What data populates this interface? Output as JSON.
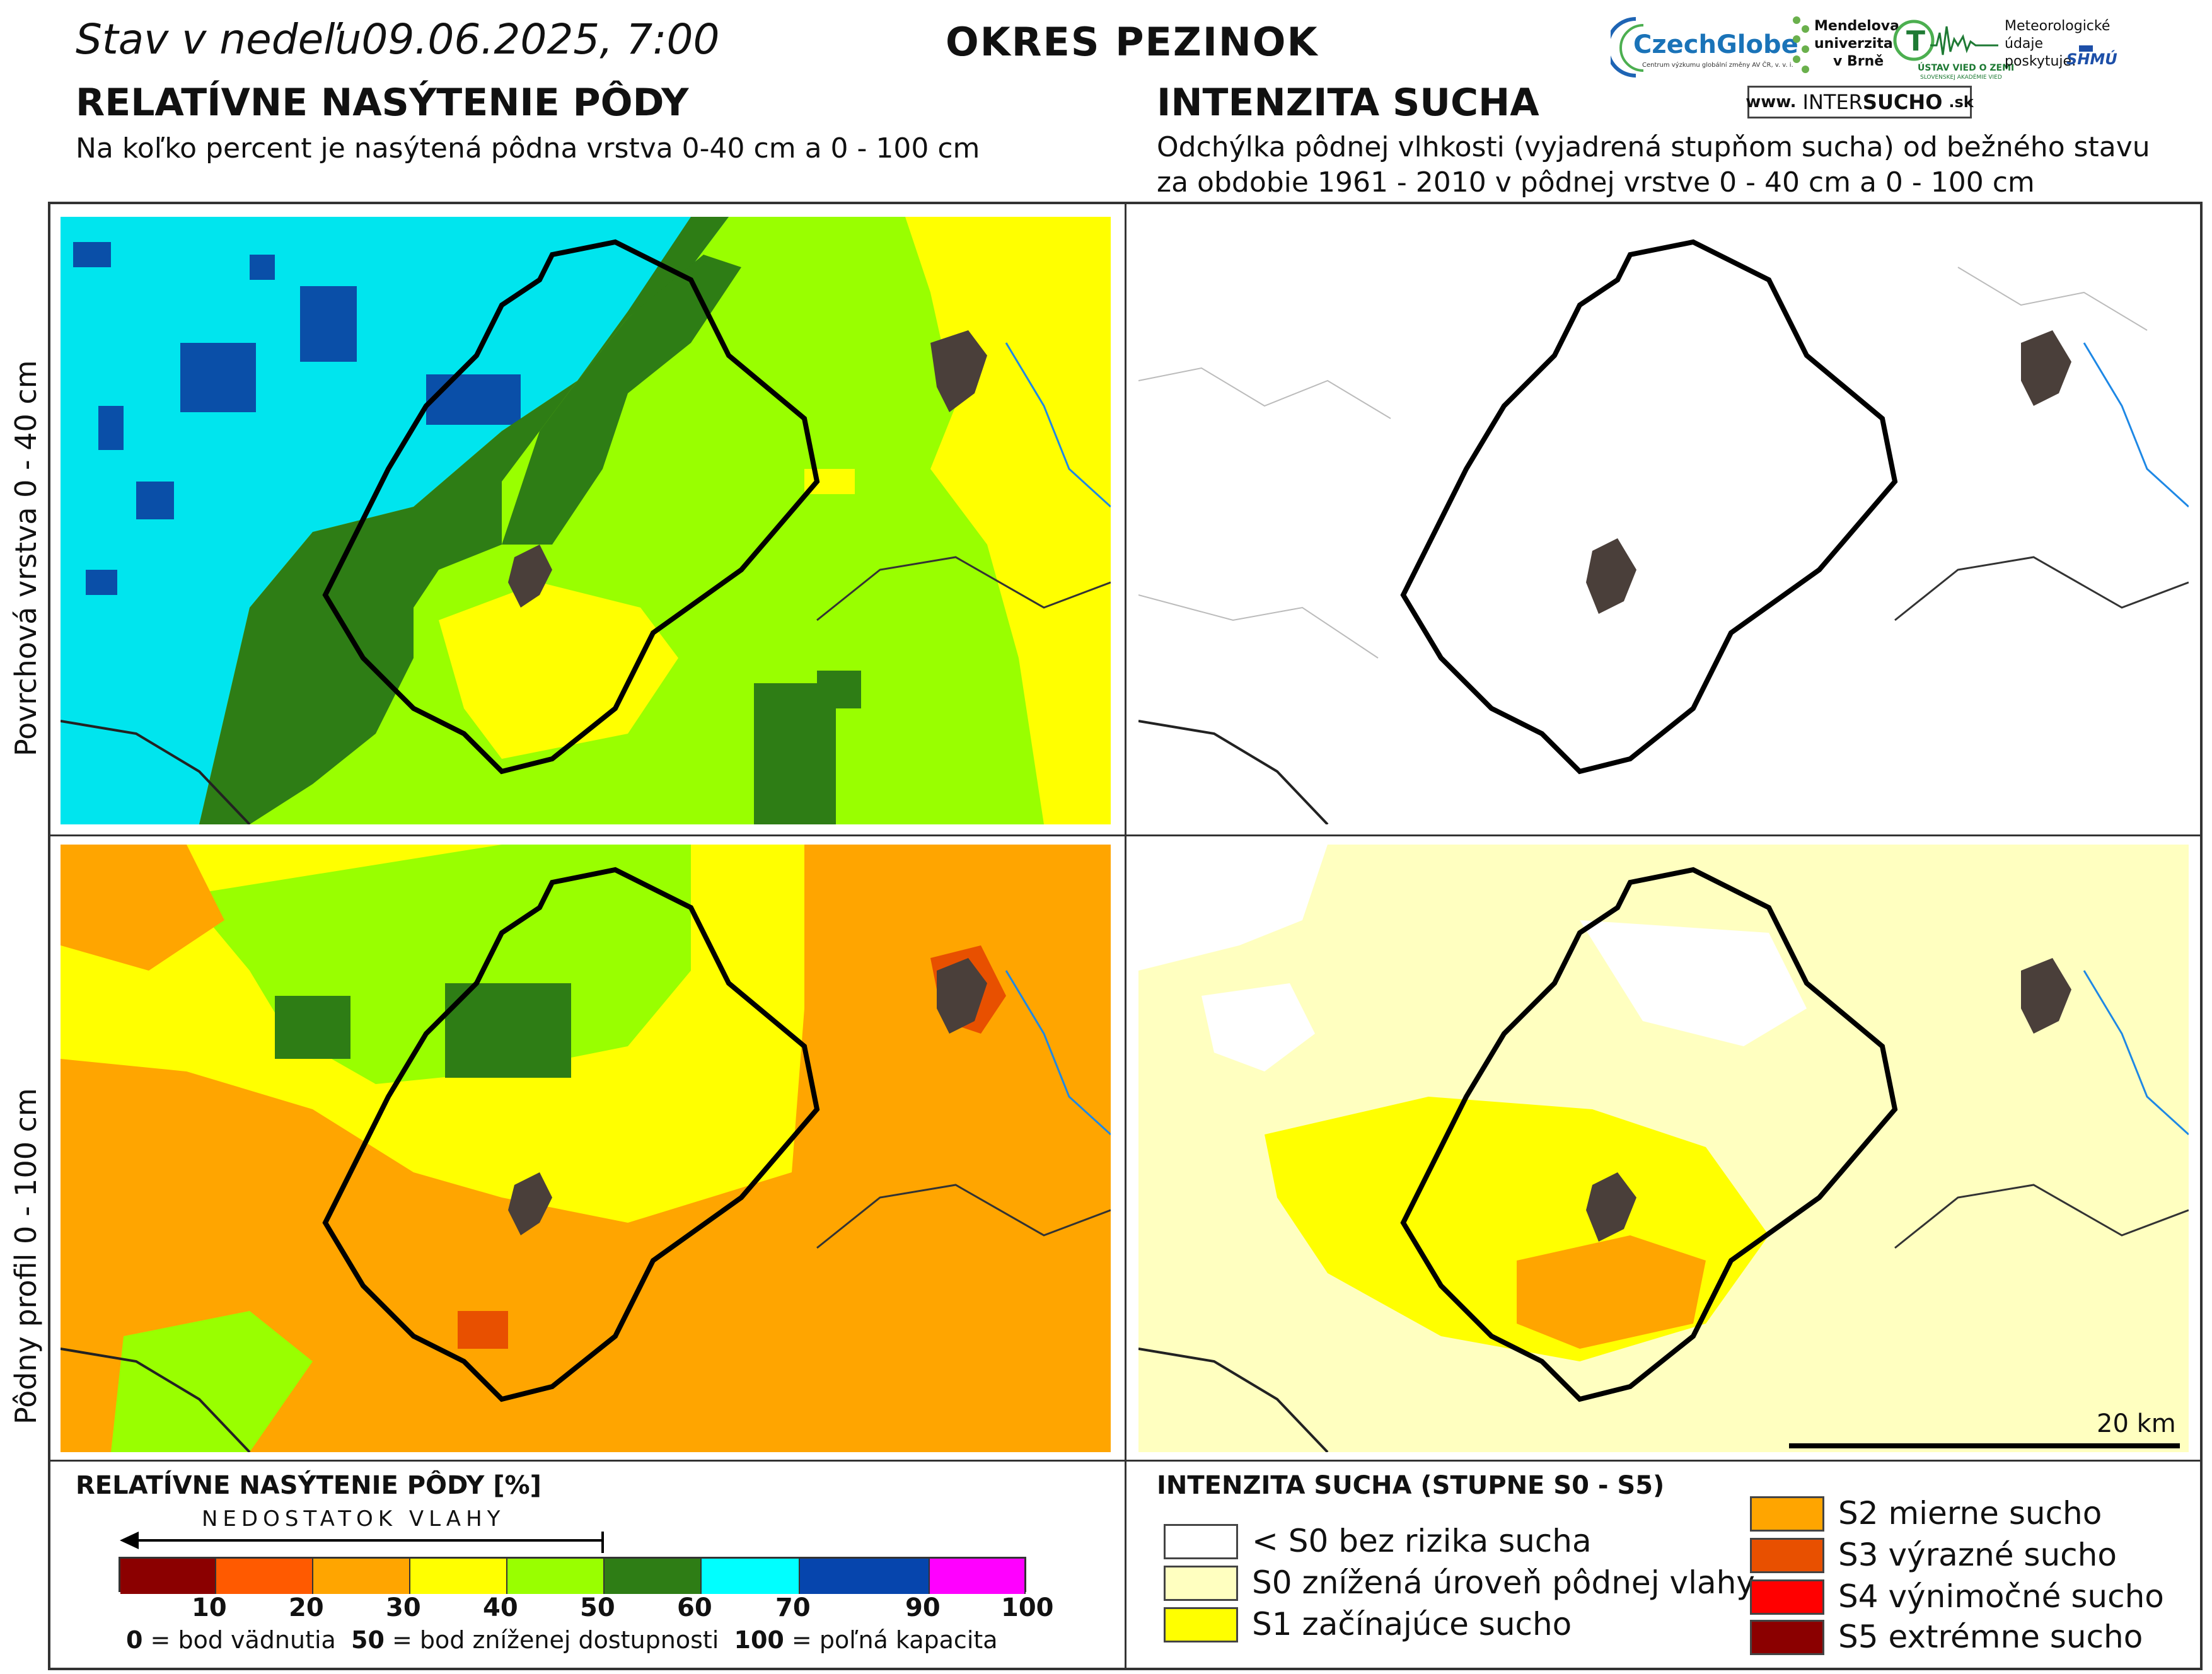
{
  "header": {
    "date_prefix": "Stav v nedeľu",
    "date_value": "09.06.2025, 7:00",
    "district": "OKRES  PEZINOK"
  },
  "left": {
    "heading": "RELATÍVNE NASÝTENIE PÔDY",
    "subheading": "Na koľko percent je nasýtená pôdna vrstva 0-40 cm a 0 - 100 cm"
  },
  "right": {
    "heading": "INTENZITA SUCHA",
    "subheading_line1": "Odchýlka pôdnej vlhkosti (vyjadrená stupňom sucha) od bežného stavu",
    "subheading_line2": "za obdobie 1961 - 2010 v pôdnej vrstve 0 - 40 cm a 0 - 100 cm"
  },
  "logos": {
    "czechglobe": "CzechGlobe",
    "czechglobe_sub": "Centrum výzkumu globální změny AV ČR, v. v. i.",
    "mendel_1": "Mendelova",
    "mendel_2": "univerzita",
    "mendel_3": "v Brně",
    "uvz": "ÚSTAV VIED O ZEMI",
    "uvz_sub": "SLOVENSKEJ AKADÉMIE VIED",
    "meteo_1": "Meteorologické",
    "meteo_2": "údaje",
    "meteo_3": "poskytuje:",
    "shmu": "SHMÚ",
    "intersucho_prefix": "www.",
    "intersucho_a": "INTER",
    "intersucho_b": "SUCHO",
    "intersucho_suffix": ".sk"
  },
  "rows": {
    "top": "Povrchová vrstva 0 - 40 cm",
    "bottom": "Pôdny profil 0 - 100 cm"
  },
  "scalebar": {
    "label": "20 km"
  },
  "legend_left": {
    "title": "RELATÍVNE NASÝTENIE PÔDY [%]",
    "arrow_label": "NEDOSTATOK VLAHY",
    "colors": [
      "#8b0000",
      "#ff5a00",
      "#ffa500",
      "#ffff00",
      "#99ff00",
      "#2e7d15",
      "#00ffff",
      "#0645ad",
      "#ff00ff"
    ],
    "ticks": [
      "10",
      "20",
      "30",
      "40",
      "50",
      "60",
      "70",
      "90",
      "100"
    ],
    "note_0_num": "0",
    "note_0_text": " = bod vädnutia  ",
    "note_50_num": "50",
    "note_50_text": " = bod zníženej dostupnosti  ",
    "note_100_num": "100",
    "note_100_text": " = poľná kapacita"
  },
  "legend_right": {
    "title": "INTENZITA SUCHA (STUPNE S0 - S5)",
    "items": [
      {
        "label": "< S0 bez rizika sucha",
        "color": "#ffffff"
      },
      {
        "label": "S0 znížená úroveň pôdnej vlahy",
        "color": "#ffffc0"
      },
      {
        "label": "S1 začínajúce sucho",
        "color": "#ffff00"
      },
      {
        "label": "S2 mierne sucho",
        "color": "#ffa500"
      },
      {
        "label": "S3 výrazné sucho",
        "color": "#e85000"
      },
      {
        "label": "S4 výnimočné sucho",
        "color": "#ff0000"
      },
      {
        "label": "S5 extrémne sucho",
        "color": "#8b0000"
      }
    ]
  }
}
